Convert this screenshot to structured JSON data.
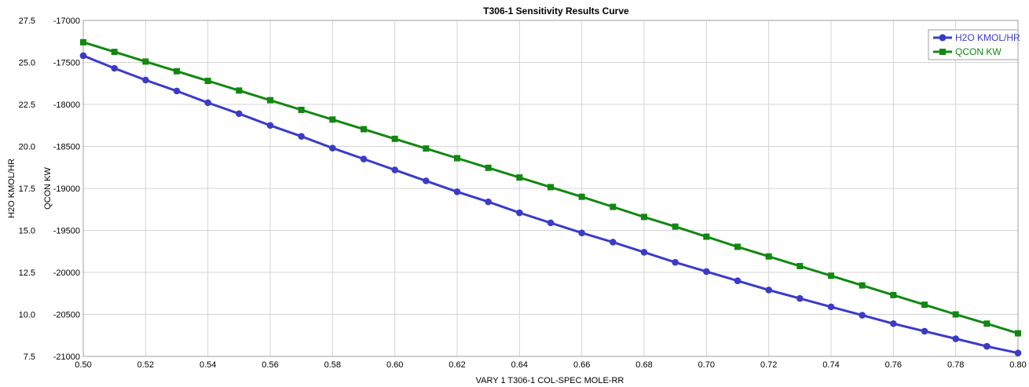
{
  "chart_data": {
    "type": "line",
    "title": "T306-1 Sensitivity Results Curve",
    "xlabel": "VARY  1 T306-1 COL-SPEC MOLE-RR",
    "xlim": [
      0.5,
      0.8
    ],
    "x_ticks": [
      "0.50",
      "0.52",
      "0.54",
      "0.56",
      "0.58",
      "0.60",
      "0.62",
      "0.64",
      "0.66",
      "0.68",
      "0.70",
      "0.72",
      "0.74",
      "0.76",
      "0.78",
      "0.80"
    ],
    "grid": true,
    "legend_position": "top-right",
    "axes": {
      "left_primary": {
        "label": "H2O KMOL/HR",
        "lim": [
          7.5,
          27.5
        ],
        "ticks": [
          "7.5",
          "10.0",
          "12.5",
          "15.0",
          "17.5",
          "20.0",
          "22.5",
          "25.0",
          "27.5"
        ]
      },
      "left_secondary": {
        "label": "QCON KW",
        "lim": [
          -21000,
          -17000
        ],
        "ticks": [
          "-21000",
          "-20500",
          "-20000",
          "-19500",
          "-19000",
          "-18500",
          "-18000",
          "-17500",
          "-17000"
        ]
      }
    },
    "x": [
      0.5,
      0.51,
      0.52,
      0.53,
      0.54,
      0.55,
      0.56,
      0.57,
      0.58,
      0.59,
      0.6,
      0.61,
      0.62,
      0.63,
      0.64,
      0.65,
      0.66,
      0.67,
      0.68,
      0.69,
      0.7,
      0.71,
      0.72,
      0.73,
      0.74,
      0.75,
      0.76,
      0.77,
      0.78,
      0.79,
      0.8
    ],
    "series": [
      {
        "name": "H2O KMOL/HR",
        "axis": "left_primary",
        "color": "#3b3bc8",
        "marker": "circle",
        "values": [
          25.4,
          24.65,
          23.95,
          23.3,
          22.6,
          21.95,
          21.25,
          20.6,
          19.9,
          19.25,
          18.6,
          17.95,
          17.3,
          16.7,
          16.05,
          15.45,
          14.85,
          14.3,
          13.7,
          13.1,
          12.55,
          12.0,
          11.45,
          10.95,
          10.45,
          9.95,
          9.45,
          9.0,
          8.55,
          8.1,
          7.7
        ]
      },
      {
        "name": "QCON KW",
        "axis": "left_secondary",
        "color": "#118811",
        "marker": "square",
        "values": [
          -17260,
          -17375,
          -17490,
          -17605,
          -17720,
          -17835,
          -17950,
          -18065,
          -18180,
          -18295,
          -18410,
          -18525,
          -18640,
          -18755,
          -18870,
          -18985,
          -19100,
          -19220,
          -19340,
          -19455,
          -19575,
          -19695,
          -19810,
          -19925,
          -20040,
          -20155,
          -20270,
          -20385,
          -20500,
          -20610,
          -20725
        ]
      }
    ]
  }
}
